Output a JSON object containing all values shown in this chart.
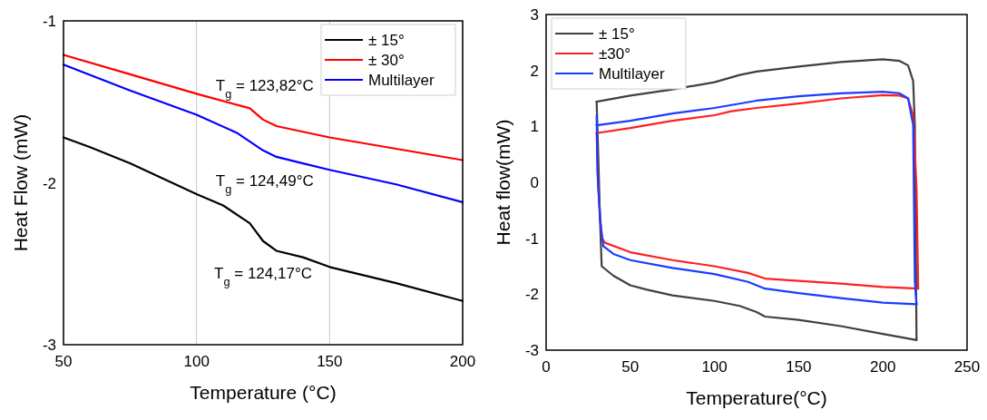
{
  "chart_data": [
    {
      "type": "line",
      "xlabel": "Temperature (°C)",
      "ylabel": "Heat Flow (mW)",
      "xlim": [
        50,
        200
      ],
      "xticks": [
        50,
        100,
        150,
        200
      ],
      "ylim": [
        -3,
        -1
      ],
      "yticks": [
        -3,
        -2,
        -1
      ],
      "grid": "x",
      "legend": "top right",
      "series": [
        {
          "name": "± 15°",
          "color": "#000000",
          "x": [
            50,
            60,
            75,
            100,
            110,
            120,
            125,
            130,
            140,
            150,
            175,
            200
          ],
          "values": [
            -1.72,
            -1.78,
            -1.88,
            -2.07,
            -2.14,
            -2.25,
            -2.36,
            -2.42,
            -2.46,
            -2.52,
            -2.62,
            -2.73
          ]
        },
        {
          "name": "± 30°",
          "color": "#ff0000",
          "x": [
            50,
            75,
            100,
            120,
            125,
            130,
            150,
            175,
            200
          ],
          "values": [
            -1.21,
            -1.33,
            -1.45,
            -1.54,
            -1.61,
            -1.65,
            -1.72,
            -1.79,
            -1.86
          ]
        },
        {
          "name": "Multilayer",
          "color": "#0000ff",
          "x": [
            50,
            75,
            100,
            115,
            125,
            130,
            140,
            150,
            175,
            200
          ],
          "values": [
            -1.27,
            -1.43,
            -1.58,
            -1.69,
            -1.8,
            -1.84,
            -1.88,
            -1.92,
            -2.01,
            -2.12
          ]
        }
      ],
      "annotations": [
        "T$_{g}$ = 123,82°C",
        "T$_{g}$ = 124,49°C",
        "T$_{g}$ = 124,17°C"
      ]
    },
    {
      "type": "line",
      "xlabel": "Temperature(°C)",
      "ylabel": "Heat flow(mW)",
      "xlim": [
        0,
        250
      ],
      "xticks": [
        0,
        50,
        100,
        150,
        200,
        250
      ],
      "ylim": [
        -3,
        3
      ],
      "yticks": [
        -3,
        -2,
        -1,
        0,
        1,
        2,
        3
      ],
      "legend": "top left",
      "series": [
        {
          "name": "± 15°",
          "color": "#404040",
          "x": [
            30,
            50,
            75,
            100,
            115,
            125,
            150,
            175,
            200,
            210,
            215,
            218,
            219,
            220
          ],
          "values": [
            1.44,
            1.55,
            1.66,
            1.79,
            1.92,
            1.98,
            2.07,
            2.15,
            2.2,
            2.17,
            2.09,
            1.81,
            1.02,
            -2.82
          ]
        },
        {
          "color": "#404040",
          "x": [
            30,
            31,
            32,
            33,
            40,
            50,
            60,
            75,
            100,
            115,
            125,
            130,
            150,
            175,
            200,
            220
          ],
          "values": [
            1.44,
            0.46,
            -0.66,
            -1.5,
            -1.67,
            -1.84,
            -1.92,
            -2.02,
            -2.12,
            -2.21,
            -2.32,
            -2.4,
            -2.46,
            -2.57,
            -2.71,
            -2.82
          ]
        },
        {
          "name": "±30°",
          "color": "#ff2020",
          "x": [
            30,
            50,
            75,
            100,
            110,
            125,
            150,
            175,
            200,
            210,
            215,
            218,
            220,
            221
          ],
          "values": [
            0.88,
            0.97,
            1.1,
            1.2,
            1.27,
            1.33,
            1.41,
            1.5,
            1.56,
            1.55,
            1.5,
            1.19,
            -0.1,
            -1.9
          ]
        },
        {
          "color": "#ff2020",
          "x": [
            30,
            31,
            33,
            35,
            50,
            75,
            100,
            120,
            130,
            150,
            175,
            200,
            221
          ],
          "values": [
            0.88,
            -0.1,
            -0.99,
            -1.08,
            -1.25,
            -1.39,
            -1.5,
            -1.62,
            -1.72,
            -1.76,
            -1.81,
            -1.87,
            -1.9
          ]
        },
        {
          "name": "Multilayer",
          "color": "#1a3cff",
          "x": [
            30,
            50,
            75,
            100,
            125,
            150,
            175,
            200,
            210,
            215,
            218,
            219,
            220
          ],
          "values": [
            1.02,
            1.1,
            1.23,
            1.33,
            1.46,
            1.54,
            1.59,
            1.62,
            1.59,
            1.5,
            1.02,
            -1.78,
            -2.18
          ]
        },
        {
          "color": "#1a3cff",
          "x": [
            30,
            30.5,
            32,
            34,
            40,
            50,
            75,
            100,
            120,
            130,
            150,
            175,
            200,
            220
          ],
          "values": [
            1.19,
            0.18,
            -0.66,
            -1.14,
            -1.28,
            -1.39,
            -1.53,
            -1.64,
            -1.78,
            -1.9,
            -1.98,
            -2.07,
            -2.15,
            -2.18
          ]
        }
      ]
    }
  ]
}
